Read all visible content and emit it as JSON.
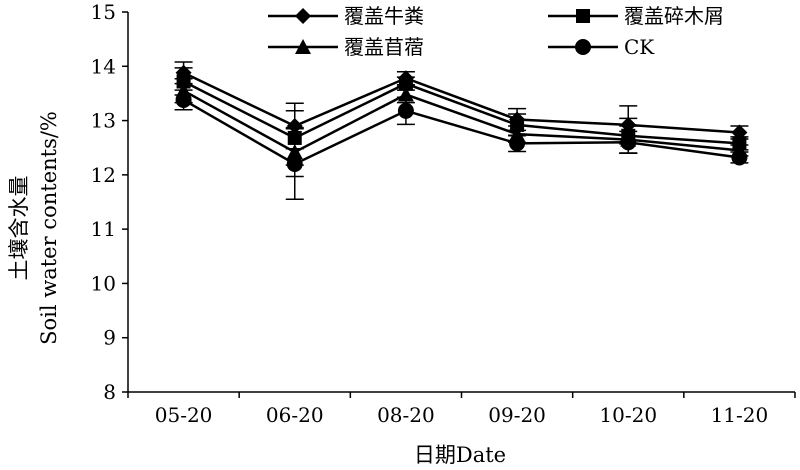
{
  "chart_data": {
    "type": "line",
    "title": "",
    "xlabel": "日期Date",
    "ylabel_line1": "土壤含水量",
    "ylabel_line2": "Soil  water contents/%",
    "categories": [
      "05-20",
      "06-20",
      "08-20",
      "09-20",
      "10-20",
      "11-20"
    ],
    "ylim": [
      8,
      15
    ],
    "yticks": [
      "8",
      "9",
      "10",
      "11",
      "12",
      "13",
      "14",
      "15"
    ],
    "grid": false,
    "legend_position": "top",
    "series": [
      {
        "name": "覆盖牛粪",
        "marker": "diamond",
        "values": [
          13.88,
          12.9,
          13.78,
          13.02,
          12.92,
          12.78
        ],
        "errors": [
          0.2,
          0.42,
          0.12,
          0.2,
          0.35,
          0.12
        ]
      },
      {
        "name": "覆盖碎木屑",
        "marker": "square",
        "values": [
          13.72,
          12.68,
          13.68,
          12.92,
          12.72,
          12.58
        ],
        "errors": [
          0.25,
          0.5,
          0.12,
          0.2,
          0.32,
          0.12
        ]
      },
      {
        "name": "覆盖苜蓿",
        "marker": "triangle",
        "values": [
          13.55,
          12.42,
          13.48,
          12.75,
          12.65,
          12.45
        ],
        "errors": [
          0.22,
          0.45,
          0.15,
          0.15,
          0.25,
          0.1
        ]
      },
      {
        "name": "CK",
        "marker": "circle",
        "values": [
          13.38,
          12.2,
          13.18,
          12.58,
          12.6,
          12.32
        ],
        "errors": [
          0.18,
          0.65,
          0.25,
          0.15,
          0.2,
          0.1
        ]
      }
    ]
  }
}
